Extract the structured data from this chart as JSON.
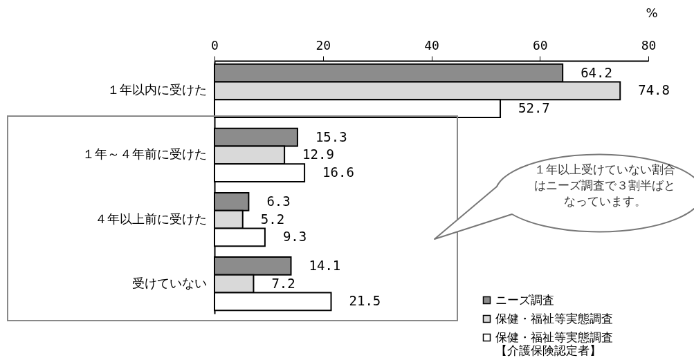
{
  "chart_data": {
    "type": "bar",
    "orientation": "horizontal",
    "xlabel": "%",
    "categories": [
      "１年以内に受けた",
      "１年～４年前に受けた",
      "４年以上前に受けた",
      "受けていない"
    ],
    "series": [
      {
        "name": "ニーズ調査",
        "color": "#8c8c8c",
        "values": [
          64.2,
          15.3,
          6.3,
          14.1
        ]
      },
      {
        "name": "保健・福祉等実態調査",
        "color": "#d9d9d9",
        "values": [
          74.8,
          12.9,
          5.2,
          7.2
        ]
      },
      {
        "name": "保健・福祉等実態調査【介護保険認定者】",
        "color": "#ffffff",
        "values": [
          52.7,
          16.6,
          9.3,
          21.5
        ]
      }
    ],
    "xlim": [
      0,
      80
    ],
    "xticks": [
      0,
      20,
      40,
      60,
      80
    ],
    "grid": false,
    "legend": "bottom right",
    "data_labels": true,
    "annotations": [
      "１年以上受けていない割合はニーズ調査で３割半ばとなっています。"
    ]
  }
}
